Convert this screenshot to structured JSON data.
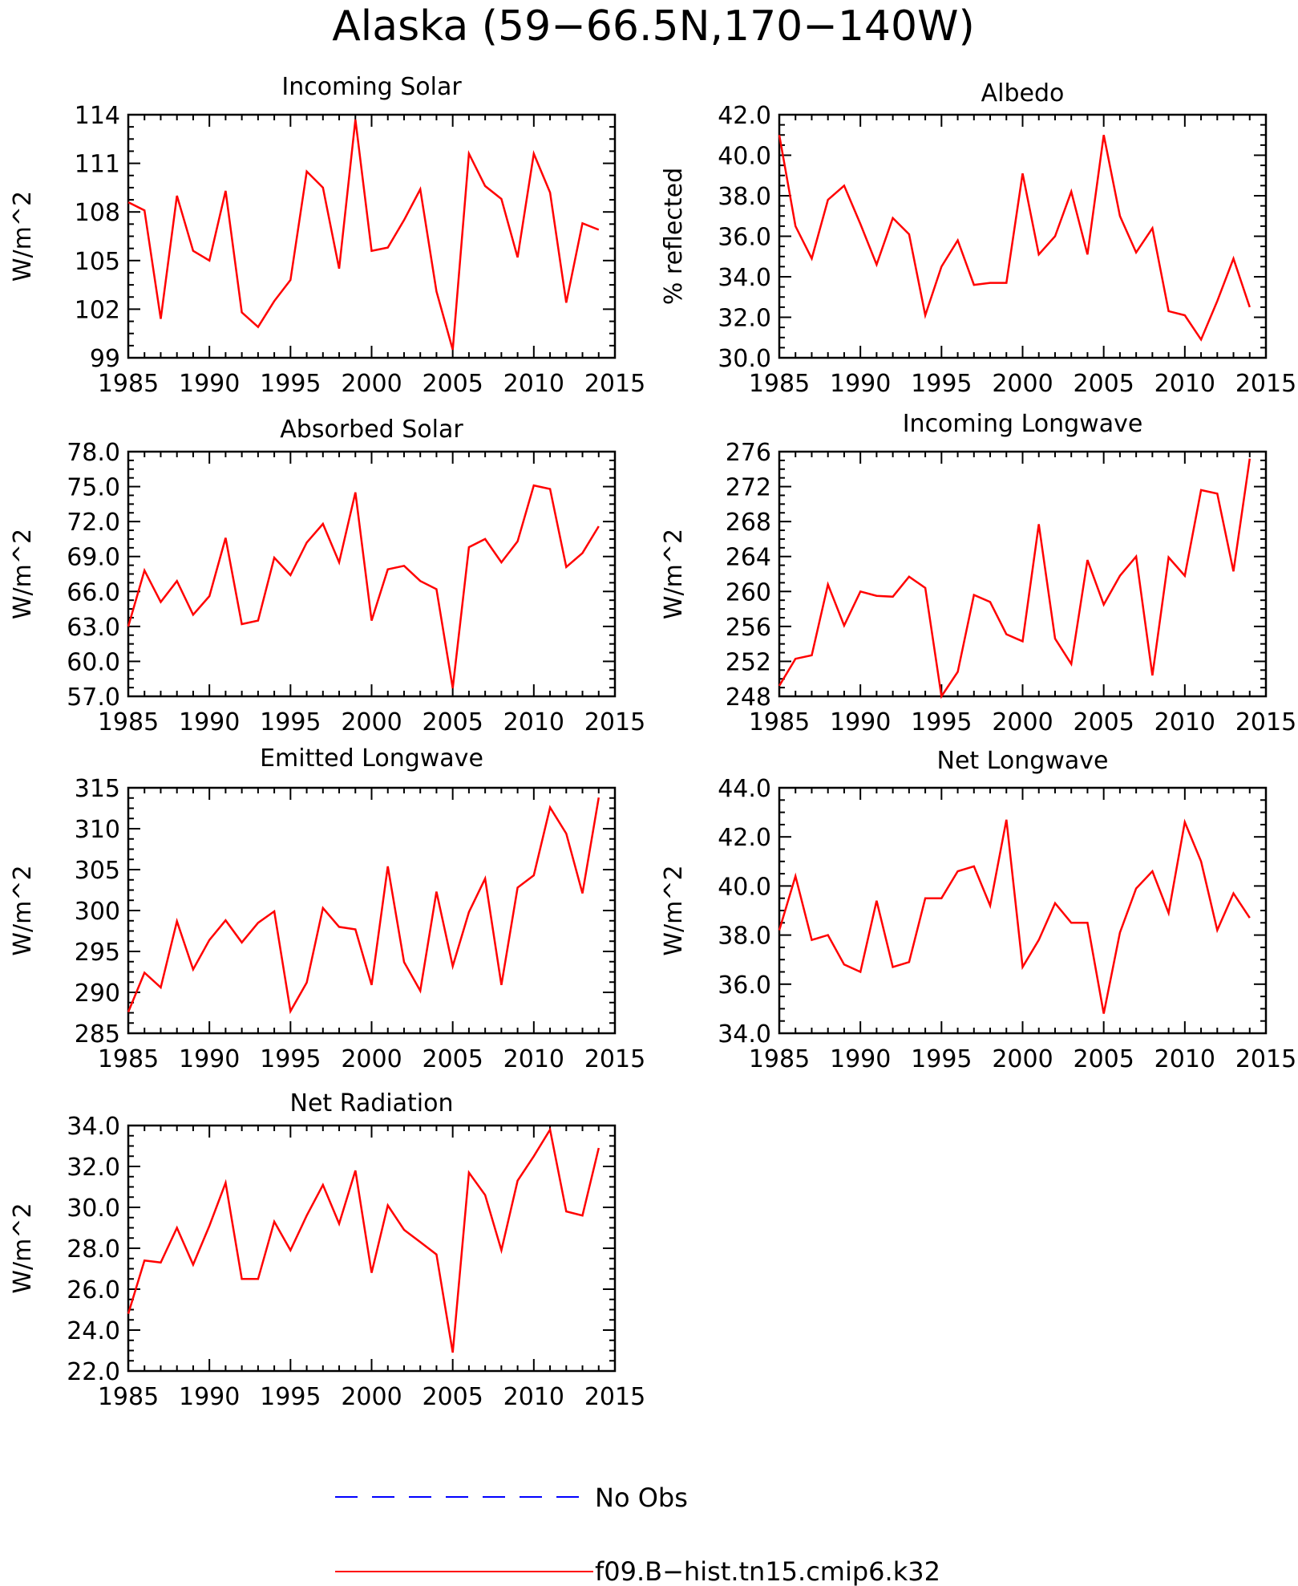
{
  "title": "Alaska (59−66.5N,170−140W)",
  "colors": {
    "model": "#ff0000",
    "obs": "#0000ff",
    "axis": "#000000"
  },
  "legend": [
    {
      "label": "No Obs",
      "style": "dashed",
      "color": "#0000ff"
    },
    {
      "label": "f09.B−hist.tn15.cmip6.k32",
      "style": "solid",
      "color": "#ff0000"
    }
  ],
  "chart_data": [
    {
      "type": "line",
      "title": "Incoming Solar",
      "ylabel": "W/m^2",
      "xlim": [
        1985,
        2015
      ],
      "xticks": [
        1985,
        1990,
        1995,
        2000,
        2005,
        2010,
        2015
      ],
      "ylim": [
        99,
        114
      ],
      "yticks": [
        "99",
        "102",
        "105",
        "108",
        "111",
        "114"
      ],
      "series": [
        {
          "name": "f09.B−hist.tn15.cmip6.k32",
          "x": [
            1985,
            1986,
            1987,
            1988,
            1989,
            1990,
            1991,
            1992,
            1993,
            1994,
            1995,
            1996,
            1997,
            1998,
            1999,
            2000,
            2001,
            2002,
            2003,
            2004,
            2005,
            2006,
            2007,
            2008,
            2009,
            2010,
            2011,
            2012,
            2013,
            2014
          ],
          "values": [
            108.6,
            108.1,
            101.4,
            109.0,
            105.6,
            105.0,
            109.3,
            101.8,
            100.9,
            102.5,
            103.8,
            110.5,
            109.5,
            104.5,
            113.7,
            105.6,
            105.8,
            107.5,
            109.4,
            103.1,
            99.5,
            111.6,
            109.6,
            108.8,
            105.2,
            111.6,
            109.2,
            102.4,
            107.3,
            106.9
          ]
        }
      ]
    },
    {
      "type": "line",
      "title": "Albedo",
      "ylabel": "% reflected",
      "xlim": [
        1985,
        2015
      ],
      "xticks": [
        1985,
        1990,
        1995,
        2000,
        2005,
        2010,
        2015
      ],
      "ylim": [
        30,
        42
      ],
      "yticks": [
        "30.0",
        "32.0",
        "34.0",
        "36.0",
        "38.0",
        "40.0",
        "42.0"
      ],
      "series": [
        {
          "name": "f09.B−hist.tn15.cmip6.k32",
          "x": [
            1985,
            1986,
            1987,
            1988,
            1989,
            1990,
            1991,
            1992,
            1993,
            1994,
            1995,
            1996,
            1997,
            1998,
            1999,
            2000,
            2001,
            2002,
            2003,
            2004,
            2005,
            2006,
            2007,
            2008,
            2009,
            2010,
            2011,
            2012,
            2013,
            2014
          ],
          "values": [
            41.0,
            36.5,
            34.9,
            37.8,
            38.5,
            36.6,
            34.6,
            36.9,
            36.1,
            32.1,
            34.5,
            35.8,
            33.6,
            33.7,
            33.7,
            39.1,
            35.1,
            36.0,
            38.2,
            35.1,
            41.0,
            37.0,
            35.2,
            36.4,
            32.3,
            32.1,
            30.9,
            32.8,
            34.9,
            32.5
          ]
        }
      ]
    },
    {
      "type": "line",
      "title": "Absorbed Solar",
      "ylabel": "W/m^2",
      "xlim": [
        1985,
        2015
      ],
      "xticks": [
        1985,
        1990,
        1995,
        2000,
        2005,
        2010,
        2015
      ],
      "ylim": [
        57,
        78
      ],
      "yticks": [
        "57.0",
        "60.0",
        "63.0",
        "66.0",
        "69.0",
        "72.0",
        "75.0",
        "78.0"
      ],
      "series": [
        {
          "name": "f09.B−hist.tn15.cmip6.k32",
          "x": [
            1985,
            1986,
            1987,
            1988,
            1989,
            1990,
            1991,
            1992,
            1993,
            1994,
            1995,
            1996,
            1997,
            1998,
            1999,
            2000,
            2001,
            2002,
            2003,
            2004,
            2005,
            2006,
            2007,
            2008,
            2009,
            2010,
            2011,
            2012,
            2013,
            2014
          ],
          "values": [
            63.0,
            67.8,
            65.1,
            66.9,
            64.0,
            65.6,
            70.6,
            63.2,
            63.5,
            68.9,
            67.4,
            70.2,
            71.8,
            68.5,
            74.5,
            63.5,
            67.9,
            68.2,
            66.9,
            66.2,
            57.7,
            69.8,
            70.5,
            68.5,
            70.3,
            75.1,
            74.8,
            68.1,
            69.3,
            71.6
          ]
        }
      ]
    },
    {
      "type": "line",
      "title": "Incoming Longwave",
      "ylabel": "W/m^2",
      "xlim": [
        1985,
        2015
      ],
      "xticks": [
        1985,
        1990,
        1995,
        2000,
        2005,
        2010,
        2015
      ],
      "ylim": [
        248,
        276
      ],
      "yticks": [
        "248",
        "252",
        "256",
        "260",
        "264",
        "268",
        "272",
        "276"
      ],
      "series": [
        {
          "name": "f09.B−hist.tn15.cmip6.k32",
          "x": [
            1985,
            1986,
            1987,
            1988,
            1989,
            1990,
            1991,
            1992,
            1993,
            1994,
            1995,
            1996,
            1997,
            1998,
            1999,
            2000,
            2001,
            2002,
            2003,
            2004,
            2005,
            2006,
            2007,
            2008,
            2009,
            2010,
            2011,
            2012,
            2013,
            2014
          ],
          "values": [
            249.2,
            252.3,
            252.7,
            260.8,
            256.1,
            260.0,
            259.5,
            259.4,
            261.7,
            260.4,
            248.0,
            250.8,
            259.6,
            258.8,
            255.1,
            254.3,
            267.7,
            254.6,
            251.7,
            263.6,
            258.5,
            261.8,
            264.0,
            250.4,
            263.9,
            261.8,
            271.6,
            271.2,
            262.3,
            275.2
          ]
        }
      ]
    },
    {
      "type": "line",
      "title": "Emitted Longwave",
      "ylabel": "W/m^2",
      "xlim": [
        1985,
        2015
      ],
      "xticks": [
        1985,
        1990,
        1995,
        2000,
        2005,
        2010,
        2015
      ],
      "ylim": [
        285,
        315
      ],
      "yticks": [
        "285",
        "290",
        "295",
        "300",
        "305",
        "310",
        "315"
      ],
      "series": [
        {
          "name": "f09.B−hist.tn15.cmip6.k32",
          "x": [
            1985,
            1986,
            1987,
            1988,
            1989,
            1990,
            1991,
            1992,
            1993,
            1994,
            1995,
            1996,
            1997,
            1998,
            1999,
            2000,
            2001,
            2002,
            2003,
            2004,
            2005,
            2006,
            2007,
            2008,
            2009,
            2010,
            2011,
            2012,
            2013,
            2014
          ],
          "values": [
            287.6,
            292.4,
            290.6,
            298.7,
            292.8,
            296.4,
            298.8,
            296.1,
            298.5,
            299.9,
            287.7,
            291.2,
            300.3,
            298.0,
            297.7,
            290.9,
            305.4,
            293.7,
            290.2,
            302.3,
            293.2,
            299.8,
            303.9,
            290.9,
            302.8,
            304.3,
            312.6,
            309.4,
            302.1,
            313.8
          ]
        }
      ]
    },
    {
      "type": "line",
      "title": "Net Longwave",
      "ylabel": "W/m^2",
      "xlim": [
        1985,
        2015
      ],
      "xticks": [
        1985,
        1990,
        1995,
        2000,
        2005,
        2010,
        2015
      ],
      "ylim": [
        34,
        44
      ],
      "yticks": [
        "34.0",
        "36.0",
        "38.0",
        "40.0",
        "42.0",
        "44.0"
      ],
      "series": [
        {
          "name": "f09.B−hist.tn15.cmip6.k32",
          "x": [
            1985,
            1986,
            1987,
            1988,
            1989,
            1990,
            1991,
            1992,
            1993,
            1994,
            1995,
            1996,
            1997,
            1998,
            1999,
            2000,
            2001,
            2002,
            2003,
            2004,
            2005,
            2006,
            2007,
            2008,
            2009,
            2010,
            2011,
            2012,
            2013,
            2014
          ],
          "values": [
            38.2,
            40.4,
            37.8,
            38.0,
            36.8,
            36.5,
            39.4,
            36.7,
            36.9,
            39.5,
            39.5,
            40.6,
            40.8,
            39.2,
            42.7,
            36.7,
            37.8,
            39.3,
            38.5,
            38.5,
            34.8,
            38.1,
            39.9,
            40.6,
            38.9,
            42.6,
            41.0,
            38.2,
            39.7,
            38.7
          ]
        }
      ]
    },
    {
      "type": "line",
      "title": "Net Radiation",
      "ylabel": "W/m^2",
      "xlim": [
        1985,
        2015
      ],
      "xticks": [
        1985,
        1990,
        1995,
        2000,
        2005,
        2010,
        2015
      ],
      "ylim": [
        22,
        34
      ],
      "yticks": [
        "22.0",
        "24.0",
        "26.0",
        "28.0",
        "30.0",
        "32.0",
        "34.0"
      ],
      "series": [
        {
          "name": "f09.B−hist.tn15.cmip6.k32",
          "x": [
            1985,
            1986,
            1987,
            1988,
            1989,
            1990,
            1991,
            1992,
            1993,
            1994,
            1995,
            1996,
            1997,
            1998,
            1999,
            2000,
            2001,
            2002,
            2003,
            2004,
            2005,
            2006,
            2007,
            2008,
            2009,
            2010,
            2011,
            2012,
            2013,
            2014
          ],
          "values": [
            24.8,
            27.4,
            27.3,
            29.0,
            27.2,
            29.1,
            31.2,
            26.5,
            26.5,
            29.3,
            27.9,
            29.6,
            31.1,
            29.2,
            31.8,
            26.8,
            30.1,
            28.9,
            28.3,
            27.7,
            22.9,
            31.7,
            30.6,
            27.9,
            31.3,
            32.5,
            33.8,
            29.8,
            29.6,
            32.9
          ]
        }
      ]
    }
  ]
}
